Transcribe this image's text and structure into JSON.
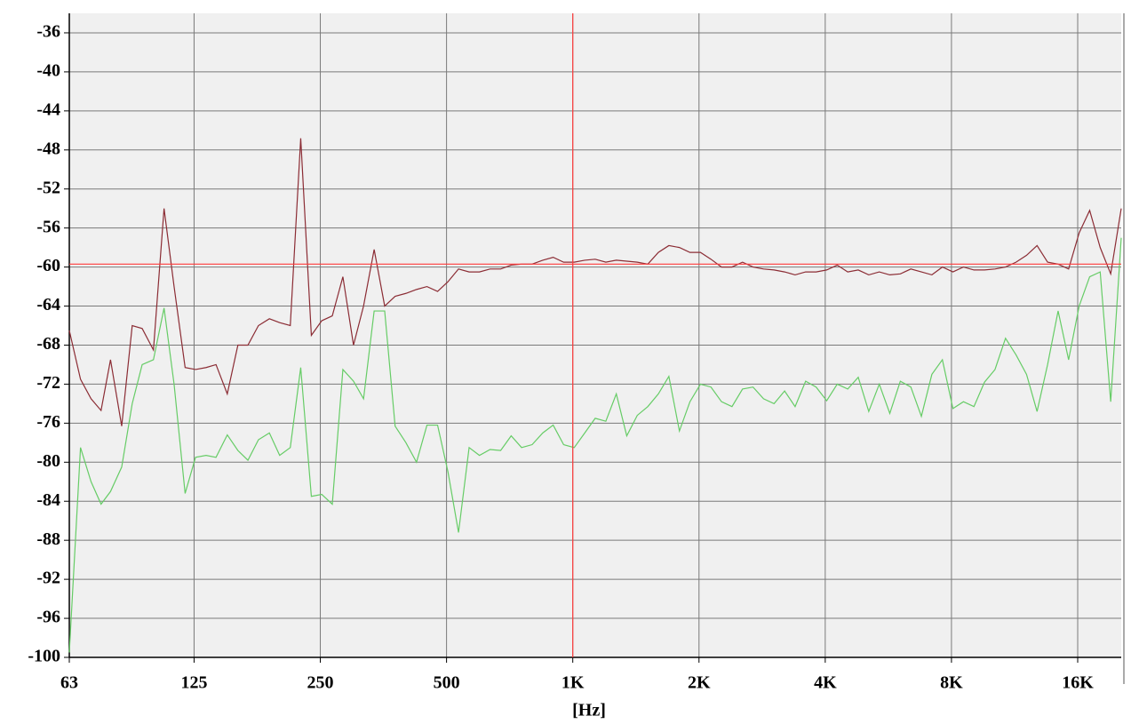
{
  "chart_data": {
    "type": "line",
    "xlabel": "[Hz]",
    "xscale": "log",
    "grid": true,
    "xlim": [
      63,
      20320
    ],
    "ylim": [
      -100,
      -34
    ],
    "xticks": [
      63,
      125,
      250,
      500,
      {
        "value": 1000,
        "label": "1K"
      },
      {
        "value": 2000,
        "label": "2K"
      },
      {
        "value": 4000,
        "label": "4K"
      },
      {
        "value": 8000,
        "label": "8K"
      },
      {
        "value": 16000,
        "label": "16K"
      }
    ],
    "yticks": [
      -36,
      -40,
      -44,
      -48,
      -52,
      -56,
      -60,
      -64,
      -68,
      -72,
      -76,
      -80,
      -84,
      -88,
      -92,
      -96,
      -100
    ],
    "cursor": {
      "x": 1000,
      "y": -59.7,
      "color": "#ff3c3c"
    },
    "x": [
      63,
      67,
      71,
      75,
      79,
      84,
      89,
      94,
      100,
      106,
      112,
      119,
      126,
      133.5,
      141,
      150,
      159,
      168,
      178,
      189,
      200,
      212,
      224.5,
      238,
      252,
      267,
      283,
      300,
      317,
      336,
      356,
      377,
      400,
      424,
      449,
      476,
      504,
      534,
      566,
      599,
      635,
      673,
      713,
      755,
      800,
      848,
      898,
      951,
      1008,
      1068,
      1131,
      1199,
      1270,
      1345,
      1425,
      1510,
      1600,
      1695,
      1796,
      1903,
      2016,
      2136,
      2263,
      2397,
      2540,
      2691,
      2851,
      3020,
      3200,
      3390,
      3592,
      3805,
      4032,
      4272,
      4526,
      4795,
      5080,
      5382,
      5702,
      6041,
      6400,
      6781,
      7184,
      7611,
      8064,
      8543,
      9051,
      9590,
      10160,
      10764,
      11404,
      12082,
      12800,
      13561,
      14368,
      15222,
      16128,
      17087,
      18103,
      19179,
      20320
    ],
    "series": [
      {
        "color": "#8b2c34",
        "values": [
          -66.5,
          -71.5,
          -73.5,
          -74.7,
          -69.5,
          -76.3,
          -66,
          -66.3,
          -68.5,
          -54,
          -62,
          -70.3,
          -70.5,
          -70.3,
          -70,
          -73,
          -68,
          -68,
          -66,
          -65.3,
          -65.7,
          -66,
          -46.8,
          -67,
          -65.5,
          -65,
          -61,
          -68,
          -64,
          -58.2,
          -64,
          -63,
          -62.7,
          -62.3,
          -62,
          -62.5,
          -61.5,
          -60.2,
          -60.5,
          -60.5,
          -60.2,
          -60.2,
          -59.8,
          -59.7,
          -59.7,
          -59.3,
          -59,
          -59.5,
          -59.5,
          -59.3,
          -59.2,
          -59.5,
          -59.3,
          -59.4,
          -59.5,
          -59.7,
          -58.5,
          -57.8,
          -58,
          -58.5,
          -58.5,
          -59.2,
          -60,
          -60,
          -59.5,
          -60,
          -60.2,
          -60.3,
          -60.5,
          -60.8,
          -60.5,
          -60.5,
          -60.3,
          -59.8,
          -60.5,
          -60.3,
          -60.8,
          -60.5,
          -60.8,
          -60.7,
          -60.2,
          -60.5,
          -60.8,
          -60,
          -60.5,
          -60,
          -60.3,
          -60.3,
          -60.2,
          -60,
          -59.5,
          -58.8,
          -57.8,
          -59.5,
          -59.7,
          -60.2,
          -56.5,
          -54.2,
          -58,
          -60.7,
          -54
        ]
      },
      {
        "color": "#66cc66",
        "values": [
          -99.5,
          -78.5,
          -82,
          -84.3,
          -83,
          -80.5,
          -74,
          -70,
          -69.5,
          -64.2,
          -72,
          -83.2,
          -79.5,
          -79.3,
          -79.5,
          -77.2,
          -78.8,
          -79.8,
          -77.7,
          -77,
          -79.3,
          -78.5,
          -70.3,
          -83.5,
          -83.3,
          -84.3,
          -70.5,
          -71.7,
          -73.5,
          -64.5,
          -64.5,
          -76.3,
          -78,
          -80,
          -76.2,
          -76.2,
          -81,
          -87.2,
          -78.5,
          -79.3,
          -78.7,
          -78.8,
          -77.3,
          -78.5,
          -78.2,
          -77,
          -76.2,
          -78.2,
          -78.5,
          -77,
          -75.5,
          -75.8,
          -73,
          -77.3,
          -75.2,
          -74.3,
          -73,
          -71.2,
          -76.8,
          -73.8,
          -72,
          -72.3,
          -73.8,
          -74.3,
          -72.5,
          -72.3,
          -73.5,
          -74,
          -72.7,
          -74.3,
          -71.7,
          -72.3,
          -73.7,
          -72,
          -72.5,
          -71.3,
          -74.8,
          -72,
          -75,
          -71.7,
          -72.3,
          -75.3,
          -71,
          -69.5,
          -74.5,
          -73.8,
          -74.3,
          -71.8,
          -70.5,
          -67.3,
          -69,
          -71,
          -74.8,
          -70,
          -64.5,
          -69.5,
          -64,
          -61,
          -60.5,
          -73.8,
          -57
        ]
      }
    ]
  }
}
